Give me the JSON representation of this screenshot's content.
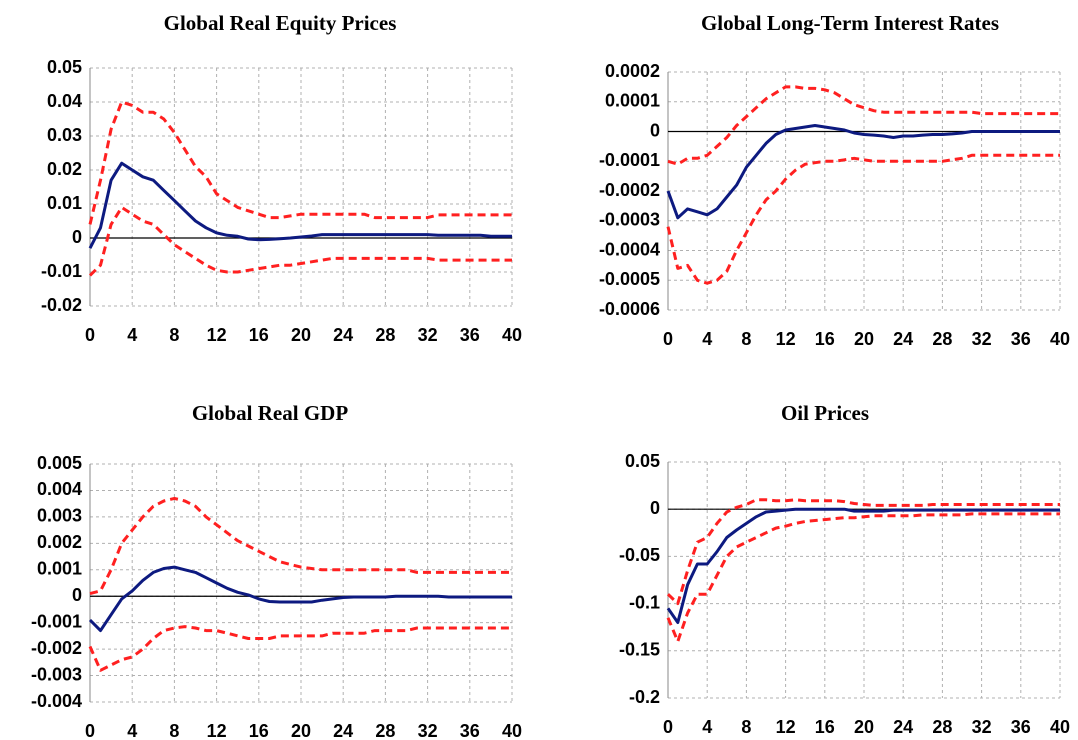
{
  "chart_data": [
    {
      "type": "line",
      "title": "Global Real Equity Prices",
      "x": [
        0,
        1,
        2,
        3,
        4,
        5,
        6,
        7,
        8,
        9,
        10,
        11,
        12,
        13,
        14,
        15,
        16,
        17,
        18,
        19,
        20,
        21,
        22,
        23,
        24,
        25,
        26,
        27,
        28,
        29,
        30,
        31,
        32,
        33,
        34,
        35,
        36,
        37,
        38,
        39,
        40
      ],
      "xlim": [
        0,
        40
      ],
      "xticks": [
        0,
        4,
        8,
        12,
        16,
        20,
        24,
        28,
        32,
        36,
        40
      ],
      "ylim": [
        -0.02,
        0.05
      ],
      "yticks": [
        0.05,
        0.04,
        0.03,
        0.02,
        0.01,
        0,
        -0.01,
        -0.02
      ],
      "grid": true,
      "series": [
        {
          "color": "#0d1a80",
          "dashed": false,
          "values": [
            -0.003,
            0.003,
            0.017,
            0.022,
            0.02,
            0.018,
            0.017,
            0.014,
            0.011,
            0.008,
            0.005,
            0.003,
            0.0015,
            0.0008,
            0.0005,
            -0.0003,
            -0.0005,
            -0.0004,
            -0.0002,
            0,
            0.0003,
            0.0006,
            0.001,
            0.001,
            0.001,
            0.001,
            0.001,
            0.001,
            0.001,
            0.001,
            0.001,
            0.001,
            0.001,
            0.0008,
            0.0008,
            0.0008,
            0.0008,
            0.0008,
            0.0005,
            0.0005,
            0.0005
          ]
        },
        {
          "color": "#ff2020",
          "dashed": true,
          "values": [
            0.004,
            0.017,
            0.032,
            0.04,
            0.039,
            0.037,
            0.037,
            0.035,
            0.031,
            0.026,
            0.021,
            0.018,
            0.013,
            0.011,
            0.009,
            0.008,
            0.007,
            0.006,
            0.006,
            0.0065,
            0.007,
            0.007,
            0.007,
            0.007,
            0.007,
            0.007,
            0.007,
            0.006,
            0.006,
            0.006,
            0.006,
            0.006,
            0.006,
            0.0068,
            0.0068,
            0.0068,
            0.0068,
            0.0068,
            0.0068,
            0.0068,
            0.0068
          ]
        },
        {
          "color": "#ff2020",
          "dashed": true,
          "values": [
            -0.011,
            -0.008,
            0.004,
            0.009,
            0.007,
            0.005,
            0.004,
            0.001,
            -0.002,
            -0.004,
            -0.006,
            -0.008,
            -0.0095,
            -0.01,
            -0.01,
            -0.0095,
            -0.009,
            -0.0085,
            -0.008,
            -0.008,
            -0.0075,
            -0.007,
            -0.0065,
            -0.006,
            -0.006,
            -0.006,
            -0.006,
            -0.006,
            -0.006,
            -0.006,
            -0.006,
            -0.006,
            -0.006,
            -0.0065,
            -0.0065,
            -0.0065,
            -0.0065,
            -0.0065,
            -0.0065,
            -0.0065,
            -0.0065
          ]
        }
      ]
    },
    {
      "type": "line",
      "title": "Global Long-Term Interest Rates",
      "x": [
        0,
        1,
        2,
        3,
        4,
        5,
        6,
        7,
        8,
        9,
        10,
        11,
        12,
        13,
        14,
        15,
        16,
        17,
        18,
        19,
        20,
        21,
        22,
        23,
        24,
        25,
        26,
        27,
        28,
        29,
        30,
        31,
        32,
        33,
        34,
        35,
        36,
        37,
        38,
        39,
        40
      ],
      "xlim": [
        0,
        40
      ],
      "xticks": [
        0,
        4,
        8,
        12,
        16,
        20,
        24,
        28,
        32,
        36,
        40
      ],
      "ylim": [
        -0.0006,
        0.0002
      ],
      "yticks": [
        0.0002,
        0.0001,
        0,
        -0.0001,
        -0.0002,
        -0.0003,
        -0.0004,
        -0.0005,
        -0.0006
      ],
      "grid": true,
      "series": [
        {
          "color": "#0d1a80",
          "dashed": false,
          "values": [
            -0.0002,
            -0.00029,
            -0.00026,
            -0.00027,
            -0.00028,
            -0.00026,
            -0.00022,
            -0.00018,
            -0.00012,
            -8e-05,
            -4e-05,
            -1e-05,
            5e-06,
            1e-05,
            1.5e-05,
            2e-05,
            1.5e-05,
            1e-05,
            5e-06,
            -5e-06,
            -1e-05,
            -1.2e-05,
            -1.5e-05,
            -2e-05,
            -1.5e-05,
            -1.5e-05,
            -1.2e-05,
            -1e-05,
            -1e-05,
            -8e-06,
            -5e-06,
            0,
            0,
            0,
            0,
            0,
            0,
            0,
            0,
            0,
            0
          ]
        },
        {
          "color": "#ff2020",
          "dashed": true,
          "values": [
            -0.0001,
            -0.00011,
            -9e-05,
            -9e-05,
            -8e-05,
            -5e-05,
            -2e-05,
            2e-05,
            5e-05,
            8e-05,
            0.00011,
            0.00013,
            0.00015,
            0.00015,
            0.000145,
            0.000145,
            0.00014,
            0.00013,
            0.00011,
            9e-05,
            8e-05,
            7e-05,
            6.5e-05,
            6.5e-05,
            6.5e-05,
            6.5e-05,
            6.5e-05,
            6.5e-05,
            6.5e-05,
            6.5e-05,
            6.5e-05,
            6.5e-05,
            6e-05,
            6e-05,
            6e-05,
            6e-05,
            6e-05,
            6e-05,
            6e-05,
            6e-05,
            6e-05
          ]
        },
        {
          "color": "#ff2020",
          "dashed": true,
          "values": [
            -0.00032,
            -0.00046,
            -0.00045,
            -0.0005,
            -0.00051,
            -0.0005,
            -0.00047,
            -0.0004,
            -0.00034,
            -0.00028,
            -0.00023,
            -0.0002,
            -0.00016,
            -0.00013,
            -0.00011,
            -0.000105,
            -0.0001,
            -0.0001,
            -9.5e-05,
            -9e-05,
            -9.5e-05,
            -0.0001,
            -0.0001,
            -0.0001,
            -0.0001,
            -0.0001,
            -0.0001,
            -0.0001,
            -0.0001,
            -9.5e-05,
            -9e-05,
            -8e-05,
            -8e-05,
            -8e-05,
            -8e-05,
            -8e-05,
            -8e-05,
            -8e-05,
            -8e-05,
            -8e-05,
            -8e-05
          ]
        }
      ]
    },
    {
      "type": "line",
      "title": "Global Real GDP",
      "x": [
        0,
        1,
        2,
        3,
        4,
        5,
        6,
        7,
        8,
        9,
        10,
        11,
        12,
        13,
        14,
        15,
        16,
        17,
        18,
        19,
        20,
        21,
        22,
        23,
        24,
        25,
        26,
        27,
        28,
        29,
        30,
        31,
        32,
        33,
        34,
        35,
        36,
        37,
        38,
        39,
        40
      ],
      "xlim": [
        0,
        40
      ],
      "xticks": [
        0,
        4,
        8,
        12,
        16,
        20,
        24,
        28,
        32,
        36,
        40
      ],
      "ylim": [
        -0.004,
        0.005
      ],
      "yticks": [
        0.005,
        0.004,
        0.003,
        0.002,
        0.001,
        0,
        -0.001,
        -0.002,
        -0.003,
        -0.004
      ],
      "grid": true,
      "series": [
        {
          "color": "#0d1a80",
          "dashed": false,
          "values": [
            -0.0009,
            -0.0013,
            -0.0007,
            -0.0001,
            0.0002,
            0.0006,
            0.0009,
            0.00105,
            0.0011,
            0.001,
            0.0009,
            0.0007,
            0.0005,
            0.0003,
            0.00015,
            5e-05,
            -0.0001,
            -0.0002,
            -0.00022,
            -0.00022,
            -0.00022,
            -0.00022,
            -0.00015,
            -0.0001,
            -5e-05,
            -3e-05,
            -3e-05,
            -3e-05,
            -3e-05,
            0,
            0,
            0,
            0,
            0,
            -3e-05,
            -3e-05,
            -3e-05,
            -3e-05,
            -3e-05,
            -3e-05,
            -3e-05
          ]
        },
        {
          "color": "#ff2020",
          "dashed": true,
          "values": [
            0.0001,
            0.0002,
            0.001,
            0.002,
            0.0025,
            0.003,
            0.0034,
            0.0036,
            0.0037,
            0.0036,
            0.0034,
            0.003,
            0.0027,
            0.0024,
            0.0021,
            0.0019,
            0.0017,
            0.0015,
            0.0013,
            0.0012,
            0.0011,
            0.00105,
            0.001,
            0.001,
            0.001,
            0.001,
            0.001,
            0.001,
            0.001,
            0.001,
            0.001,
            0.0009,
            0.0009,
            0.0009,
            0.0009,
            0.0009,
            0.0009,
            0.0009,
            0.0009,
            0.0009,
            0.0009
          ]
        },
        {
          "color": "#ff2020",
          "dashed": true,
          "values": [
            -0.0019,
            -0.0028,
            -0.0026,
            -0.0024,
            -0.0023,
            -0.002,
            -0.0016,
            -0.0013,
            -0.0012,
            -0.00115,
            -0.0012,
            -0.0013,
            -0.0013,
            -0.0014,
            -0.0015,
            -0.0016,
            -0.0016,
            -0.0016,
            -0.0015,
            -0.0015,
            -0.0015,
            -0.0015,
            -0.0015,
            -0.0014,
            -0.0014,
            -0.0014,
            -0.0014,
            -0.0013,
            -0.0013,
            -0.0013,
            -0.0013,
            -0.0012,
            -0.0012,
            -0.0012,
            -0.0012,
            -0.0012,
            -0.0012,
            -0.0012,
            -0.0012,
            -0.0012,
            -0.0012
          ]
        }
      ]
    },
    {
      "type": "line",
      "title": "Oil Prices",
      "x": [
        0,
        1,
        2,
        3,
        4,
        5,
        6,
        7,
        8,
        9,
        10,
        11,
        12,
        13,
        14,
        15,
        16,
        17,
        18,
        19,
        20,
        21,
        22,
        23,
        24,
        25,
        26,
        27,
        28,
        29,
        30,
        31,
        32,
        33,
        34,
        35,
        36,
        37,
        38,
        39,
        40
      ],
      "xlim": [
        0,
        40
      ],
      "xticks": [
        0,
        4,
        8,
        12,
        16,
        20,
        24,
        28,
        32,
        36,
        40
      ],
      "ylim": [
        -0.2,
        0.05
      ],
      "yticks": [
        0.05,
        0,
        -0.05,
        -0.1,
        -0.15,
        -0.2
      ],
      "grid": true,
      "series": [
        {
          "color": "#0d1a80",
          "dashed": false,
          "values": [
            -0.105,
            -0.12,
            -0.08,
            -0.058,
            -0.058,
            -0.045,
            -0.03,
            -0.022,
            -0.015,
            -0.008,
            -0.003,
            -0.002,
            -0.001,
            0,
            0,
            0,
            0,
            0,
            0,
            -0.002,
            -0.002,
            -0.002,
            -0.002,
            -0.001,
            -0.001,
            -0.001,
            -0.001,
            -0.001,
            -0.001,
            -0.001,
            -0.001,
            -0.001,
            -0.001,
            -0.001,
            -0.001,
            -0.001,
            -0.001,
            -0.001,
            -0.001,
            -0.001,
            -0.001
          ]
        },
        {
          "color": "#ff2020",
          "dashed": true,
          "values": [
            -0.09,
            -0.1,
            -0.065,
            -0.035,
            -0.03,
            -0.015,
            -0.003,
            0.002,
            0.005,
            0.01,
            0.01,
            0.009,
            0.009,
            0.01,
            0.009,
            0.009,
            0.009,
            0.009,
            0.008,
            0.006,
            0.005,
            0.004,
            0.004,
            0.004,
            0.004,
            0.004,
            0.004,
            0.005,
            0.005,
            0.005,
            0.005,
            0.005,
            0.005,
            0.005,
            0.005,
            0.005,
            0.005,
            0.005,
            0.005,
            0.005,
            0.005
          ]
        },
        {
          "color": "#ff2020",
          "dashed": true,
          "values": [
            -0.115,
            -0.14,
            -0.11,
            -0.09,
            -0.09,
            -0.07,
            -0.05,
            -0.04,
            -0.035,
            -0.03,
            -0.025,
            -0.02,
            -0.018,
            -0.015,
            -0.013,
            -0.012,
            -0.011,
            -0.01,
            -0.009,
            -0.009,
            -0.008,
            -0.007,
            -0.007,
            -0.007,
            -0.007,
            -0.007,
            -0.006,
            -0.006,
            -0.006,
            -0.006,
            -0.006,
            -0.005,
            -0.005,
            -0.005,
            -0.005,
            -0.005,
            -0.005,
            -0.005,
            -0.005,
            -0.005,
            -0.005
          ]
        }
      ]
    }
  ]
}
